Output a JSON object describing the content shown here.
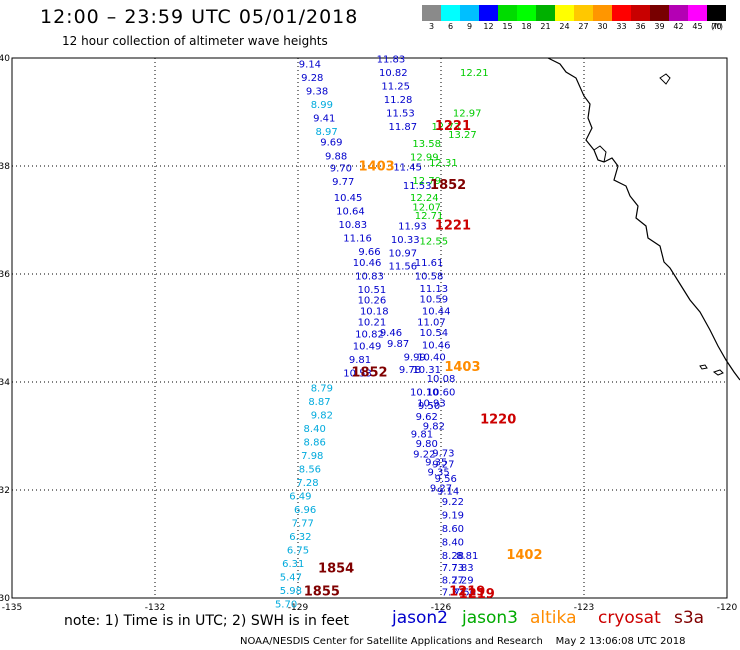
{
  "title": "12:00 – 23:59 UTC 05/01/2018",
  "subtitle": "12 hour collection of altimeter wave heights",
  "color_scale": {
    "colors": [
      "#8a8a8a",
      "#00ffff",
      "#00bfff",
      "#0000ff",
      "#00dc00",
      "#00ff00",
      "#00b000",
      "#ffff00",
      "#ffc800",
      "#ff9600",
      "#ff0000",
      "#c80000",
      "#780000",
      "#b400b4",
      "#ff00ff",
      "#000000"
    ],
    "labels": [
      "3",
      "6",
      "9",
      "12",
      "15",
      "18",
      "21",
      "24",
      "27",
      "30",
      "33",
      "36",
      "39",
      "42",
      "45",
      "70"
    ],
    "units": "(ft)"
  },
  "axes": {
    "x_ticks": [
      "-135",
      "-132",
      "-129",
      "-126",
      "-123",
      "-120"
    ],
    "y_ticks": [
      "40",
      "38",
      "36",
      "34",
      "32",
      "30"
    ],
    "lon_range": [
      -135,
      -120
    ],
    "lat_range": [
      30,
      40
    ]
  },
  "chart_data": {
    "type": "scatter",
    "series": [
      {
        "name": "jason2",
        "color": "#0000cc",
        "points": [
          {
            "lon": -128.75,
            "lat": 39.82,
            "v": "9.14"
          },
          {
            "lon": -128.7,
            "lat": 39.57,
            "v": "9.28"
          },
          {
            "lon": -128.6,
            "lat": 39.32,
            "v": "9.38"
          },
          {
            "lon": -128.45,
            "lat": 38.82,
            "v": "9.41"
          },
          {
            "lon": -128.3,
            "lat": 38.38,
            "v": "9.69"
          },
          {
            "lon": -128.2,
            "lat": 38.12,
            "v": "9.88"
          },
          {
            "lon": -128.1,
            "lat": 37.9,
            "v": "9.70"
          },
          {
            "lon": -128.05,
            "lat": 37.65,
            "v": "9.77"
          },
          {
            "lon": -127.95,
            "lat": 37.35,
            "v": "10.45"
          },
          {
            "lon": -127.9,
            "lat": 37.1,
            "v": "10.64"
          },
          {
            "lon": -127.85,
            "lat": 36.85,
            "v": "10.83"
          },
          {
            "lon": -127.75,
            "lat": 36.6,
            "v": "11.16"
          },
          {
            "lon": -127.5,
            "lat": 36.35,
            "v": "9.66"
          },
          {
            "lon": -127.55,
            "lat": 36.15,
            "v": "10.46"
          },
          {
            "lon": -127.5,
            "lat": 35.9,
            "v": "10.83"
          },
          {
            "lon": -127.45,
            "lat": 35.65,
            "v": "10.51"
          },
          {
            "lon": -127.45,
            "lat": 35.45,
            "v": "10.26"
          },
          {
            "lon": -127.4,
            "lat": 35.25,
            "v": "10.18"
          },
          {
            "lon": -127.45,
            "lat": 35.05,
            "v": "10.21"
          },
          {
            "lon": -127.5,
            "lat": 34.82,
            "v": "10.82"
          },
          {
            "lon": -127.55,
            "lat": 34.6,
            "v": "10.49"
          },
          {
            "lon": -127.7,
            "lat": 34.35,
            "v": "9.81"
          },
          {
            "lon": -127.75,
            "lat": 34.1,
            "v": "10.53"
          },
          {
            "lon": -127.05,
            "lat": 39.92,
            "v": "11.83"
          },
          {
            "lon": -127.0,
            "lat": 39.67,
            "v": "10.82"
          },
          {
            "lon": -126.95,
            "lat": 39.42,
            "v": "11.25"
          },
          {
            "lon": -126.9,
            "lat": 39.17,
            "v": "11.28"
          },
          {
            "lon": -126.85,
            "lat": 38.92,
            "v": "11.53"
          },
          {
            "lon": -126.8,
            "lat": 38.67,
            "v": "11.87"
          },
          {
            "lon": -126.7,
            "lat": 37.92,
            "v": "11.45"
          },
          {
            "lon": -126.5,
            "lat": 37.57,
            "v": "11.53"
          },
          {
            "lon": -126.6,
            "lat": 36.82,
            "v": "11.93"
          },
          {
            "lon": -126.75,
            "lat": 36.57,
            "v": "10.33"
          },
          {
            "lon": -126.8,
            "lat": 36.32,
            "v": "10.97"
          },
          {
            "lon": -126.8,
            "lat": 36.08,
            "v": "11.56"
          },
          {
            "lon": -126.25,
            "lat": 36.15,
            "v": "11.61"
          },
          {
            "lon": -126.25,
            "lat": 35.9,
            "v": "10.58"
          },
          {
            "lon": -126.15,
            "lat": 35.67,
            "v": "11.13"
          },
          {
            "lon": -126.15,
            "lat": 35.47,
            "v": "10.59"
          },
          {
            "lon": -126.1,
            "lat": 35.25,
            "v": "10.44"
          },
          {
            "lon": -126.2,
            "lat": 35.05,
            "v": "11.07"
          },
          {
            "lon": -126.15,
            "lat": 34.85,
            "v": "10.54"
          },
          {
            "lon": -126.1,
            "lat": 34.62,
            "v": "10.46"
          },
          {
            "lon": -126.2,
            "lat": 34.4,
            "v": "10.40"
          },
          {
            "lon": -127.05,
            "lat": 34.85,
            "v": "9.46"
          },
          {
            "lon": -126.9,
            "lat": 34.65,
            "v": "9.87"
          },
          {
            "lon": -126.55,
            "lat": 34.4,
            "v": "9.99"
          },
          {
            "lon": -126.65,
            "lat": 34.17,
            "v": "9.78"
          },
          {
            "lon": -126.3,
            "lat": 34.17,
            "v": "10.31"
          },
          {
            "lon": -126.0,
            "lat": 34.0,
            "v": "10.08"
          },
          {
            "lon": -126.35,
            "lat": 33.75,
            "v": "10.10"
          },
          {
            "lon": -126.0,
            "lat": 33.75,
            "v": "10.60"
          },
          {
            "lon": -126.2,
            "lat": 33.55,
            "v": "10.93"
          },
          {
            "lon": -126.25,
            "lat": 33.5,
            "v": "9.50"
          },
          {
            "lon": -126.3,
            "lat": 33.3,
            "v": "9.62"
          },
          {
            "lon": -126.15,
            "lat": 33.12,
            "v": "9.82"
          },
          {
            "lon": -126.4,
            "lat": 32.97,
            "v": "9.81"
          },
          {
            "lon": -126.3,
            "lat": 32.8,
            "v": "9.80"
          },
          {
            "lon": -126.35,
            "lat": 32.6,
            "v": "9.22"
          },
          {
            "lon": -125.95,
            "lat": 32.62,
            "v": "9.73"
          },
          {
            "lon": -126.1,
            "lat": 32.45,
            "v": "9.35"
          },
          {
            "lon": -125.95,
            "lat": 32.42,
            "v": "9.27"
          },
          {
            "lon": -126.05,
            "lat": 32.27,
            "v": "9.35"
          },
          {
            "lon": -125.9,
            "lat": 32.15,
            "v": "9.56"
          },
          {
            "lon": -126.0,
            "lat": 31.97,
            "v": "9.27"
          },
          {
            "lon": -125.85,
            "lat": 31.92,
            "v": "9.14"
          },
          {
            "lon": -125.75,
            "lat": 31.72,
            "v": "9.22"
          },
          {
            "lon": -125.75,
            "lat": 31.47,
            "v": "9.19"
          },
          {
            "lon": -125.75,
            "lat": 31.22,
            "v": "8.60"
          },
          {
            "lon": -125.75,
            "lat": 30.97,
            "v": "8.40"
          },
          {
            "lon": -125.75,
            "lat": 30.72,
            "v": "8.28"
          },
          {
            "lon": -125.45,
            "lat": 30.72,
            "v": "8.81"
          },
          {
            "lon": -125.75,
            "lat": 30.5,
            "v": "7.73"
          },
          {
            "lon": -125.55,
            "lat": 30.5,
            "v": "7.83"
          },
          {
            "lon": -125.75,
            "lat": 30.27,
            "v": "8.27"
          },
          {
            "lon": -125.55,
            "lat": 30.27,
            "v": "7.29"
          },
          {
            "lon": -125.75,
            "lat": 30.05,
            "v": "7.37"
          },
          {
            "lon": -125.5,
            "lat": 30.05,
            "v": "7.56"
          }
        ]
      },
      {
        "name": "jason3",
        "color": "#00cc00",
        "points": [
          {
            "lon": -125.3,
            "lat": 39.67,
            "v": "12.21"
          },
          {
            "lon": -125.45,
            "lat": 38.92,
            "v": "12.97"
          },
          {
            "lon": -125.9,
            "lat": 38.67,
            "v": "12.73"
          },
          {
            "lon": -125.55,
            "lat": 38.52,
            "v": "13.27"
          },
          {
            "lon": -126.3,
            "lat": 38.35,
            "v": "13.58"
          },
          {
            "lon": -126.35,
            "lat": 38.1,
            "v": "12.99"
          },
          {
            "lon": -125.95,
            "lat": 38.0,
            "v": "12.31"
          },
          {
            "lon": -126.3,
            "lat": 37.67,
            "v": "12.79"
          },
          {
            "lon": -126.35,
            "lat": 37.35,
            "v": "12.24"
          },
          {
            "lon": -126.3,
            "lat": 37.18,
            "v": "12.07"
          },
          {
            "lon": -126.25,
            "lat": 37.02,
            "v": "12.71"
          },
          {
            "lon": -126.15,
            "lat": 36.55,
            "v": "12.55"
          }
        ]
      },
      {
        "name": "altika",
        "color": "#ff8c00",
        "points": [
          {
            "lon": -127.35,
            "lat": 37.92,
            "v": "1403"
          },
          {
            "lon": -125.55,
            "lat": 34.2,
            "v": "1403"
          },
          {
            "lon": -124.25,
            "lat": 30.72,
            "v": "1402"
          }
        ]
      },
      {
        "name": "cryosat",
        "color": "#cc0000",
        "points": [
          {
            "lon": -125.75,
            "lat": 38.67,
            "v": "1221"
          },
          {
            "lon": -125.75,
            "lat": 36.82,
            "v": "1221"
          },
          {
            "lon": -124.8,
            "lat": 33.23,
            "v": "1220"
          },
          {
            "lon": -125.45,
            "lat": 30.05,
            "v": "1219"
          },
          {
            "lon": -125.25,
            "lat": 30.0,
            "v": "1219"
          }
        ]
      },
      {
        "name": "s3a",
        "color": "#800000",
        "points": [
          {
            "lon": -125.85,
            "lat": 37.57,
            "v": "1852"
          },
          {
            "lon": -127.5,
            "lat": 34.1,
            "v": "1852"
          },
          {
            "lon": -128.2,
            "lat": 30.47,
            "v": "1854"
          },
          {
            "lon": -128.5,
            "lat": 30.05,
            "v": "1855"
          }
        ]
      },
      {
        "name": "cyan-track",
        "color": "#00aadd",
        "points": [
          {
            "lon": -128.5,
            "lat": 39.07,
            "v": "8.99"
          },
          {
            "lon": -128.4,
            "lat": 38.57,
            "v": "8.97"
          },
          {
            "lon": -128.5,
            "lat": 33.82,
            "v": "8.79"
          },
          {
            "lon": -128.55,
            "lat": 33.57,
            "v": "8.87"
          },
          {
            "lon": -128.5,
            "lat": 33.32,
            "v": "9.82"
          },
          {
            "lon": -128.65,
            "lat": 33.07,
            "v": "8.40"
          },
          {
            "lon": -128.65,
            "lat": 32.82,
            "v": "8.86"
          },
          {
            "lon": -128.7,
            "lat": 32.57,
            "v": "7.98"
          },
          {
            "lon": -128.75,
            "lat": 32.32,
            "v": "8.56"
          },
          {
            "lon": -128.8,
            "lat": 32.07,
            "v": "7.28"
          },
          {
            "lon": -128.95,
            "lat": 31.82,
            "v": "6.49"
          },
          {
            "lon": -128.85,
            "lat": 31.57,
            "v": "6.96"
          },
          {
            "lon": -128.9,
            "lat": 31.32,
            "v": "7.77"
          },
          {
            "lon": -128.95,
            "lat": 31.07,
            "v": "6.32"
          },
          {
            "lon": -129.0,
            "lat": 30.82,
            "v": "6.75"
          },
          {
            "lon": -129.1,
            "lat": 30.57,
            "v": "6.31"
          },
          {
            "lon": -129.15,
            "lat": 30.32,
            "v": "5.47"
          },
          {
            "lon": -129.15,
            "lat": 30.07,
            "v": "5.98"
          },
          {
            "lon": -129.25,
            "lat": 29.82,
            "v": "5.70"
          }
        ]
      }
    ]
  },
  "footer": {
    "note": "note: 1) Time is in UTC; 2) SWH is in feet",
    "legend": [
      {
        "label": "jason2",
        "color": "#0000cc"
      },
      {
        "label": "jason3",
        "color": "#00aa00"
      },
      {
        "label": "altika",
        "color": "#ff8c00"
      },
      {
        "label": "cryosat",
        "color": "#cc0000"
      },
      {
        "label": "s3a",
        "color": "#800000"
      }
    ],
    "credit": "NOAA/NESDIS Center for Satellite Applications and Research",
    "timestamp": "May  2 13:06:08 UTC 2018"
  }
}
